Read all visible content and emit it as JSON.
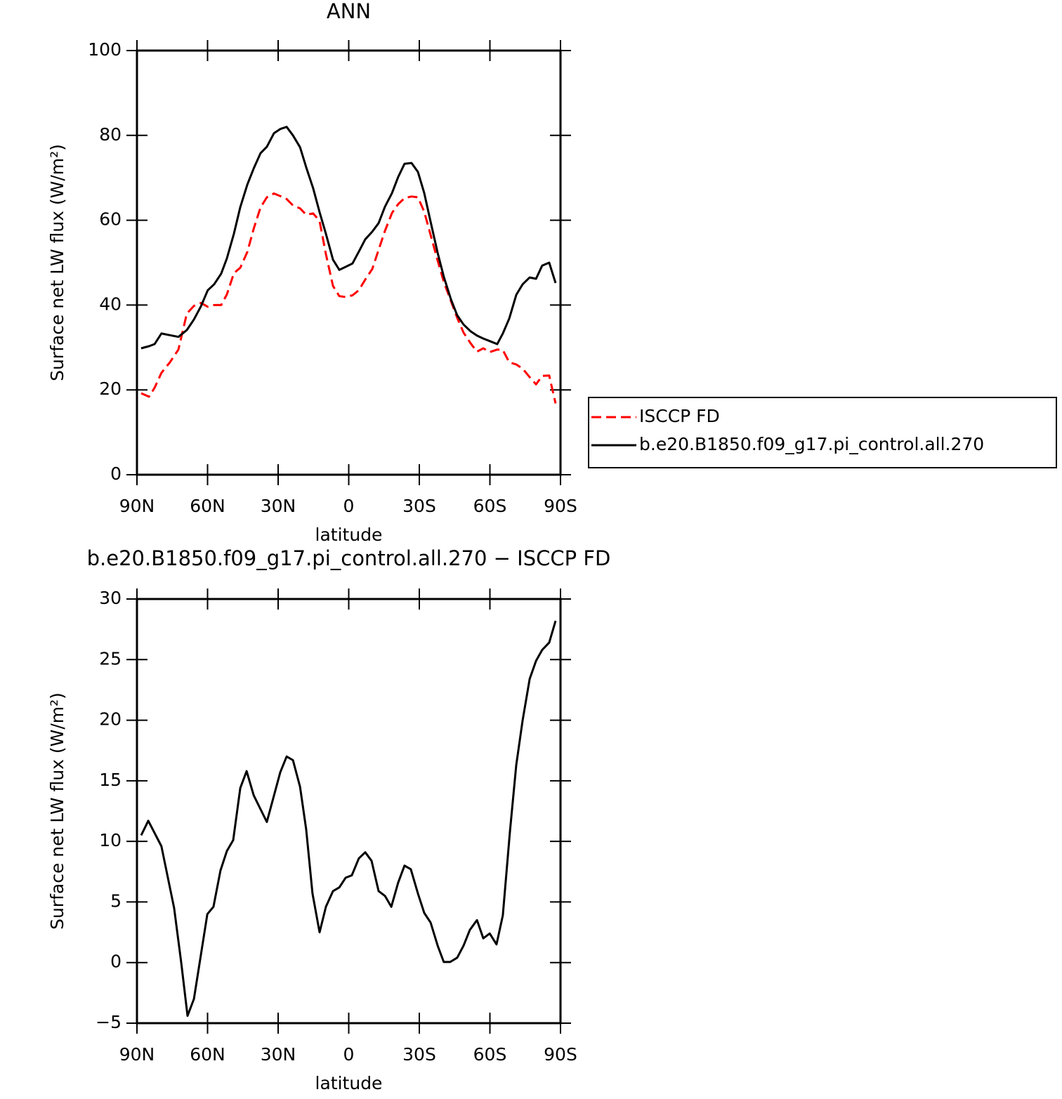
{
  "chart_data": [
    {
      "type": "line",
      "title": "ANN",
      "x_label": "latitude",
      "y_label": "Surface net LW flux (W/m²)",
      "x": [
        88.2,
        84.9,
        82.5,
        79.6,
        76,
        72.4,
        68.8,
        65.8,
        62.8,
        59.9,
        57.2,
        54.2,
        51.8,
        48.8,
        46.1,
        43.1,
        40.4,
        37.5,
        34.8,
        31.8,
        29.1,
        26.4,
        23.7,
        20.7,
        18.1,
        15.1,
        12.4,
        9.7,
        6.7,
        4,
        1.3,
        -1.6,
        -4.3,
        -7,
        -10,
        -12.7,
        -15.4,
        -18.4,
        -21,
        -23.7,
        -26.7,
        -29.4,
        -32.1,
        -34.8,
        -37.8,
        -40.4,
        -43.4,
        -46.1,
        -48.8,
        -51.8,
        -54.5,
        -57.2,
        -59.9,
        -63.1,
        -65.5,
        -68.2,
        -71.2,
        -73.9,
        -76.9,
        -79.6,
        -82.2,
        -85.2,
        -87.9
      ],
      "series": [
        {
          "name": "ISCCP FD",
          "color": "#ff0000",
          "dash": true,
          "values": [
            19.2,
            18.4,
            20.5,
            24,
            26.5,
            29.5,
            38,
            39.8,
            40.5,
            39.6,
            40,
            40,
            42.5,
            47.5,
            48.8,
            52.5,
            58,
            63,
            65.4,
            66.3,
            65.7,
            65,
            63.5,
            62.8,
            61.3,
            61.6,
            59.8,
            52,
            44.5,
            42.1,
            41.9,
            42.3,
            43.5,
            46,
            48.5,
            53,
            57.5,
            61.7,
            63.8,
            65.2,
            65.6,
            65.4,
            62,
            56.5,
            50.5,
            45.5,
            41,
            37,
            33.5,
            31,
            29,
            29.8,
            28.9,
            29.5,
            29.4,
            26.5,
            26,
            25,
            23,
            21.3,
            23.3,
            23.4,
            16.8
          ]
        },
        {
          "name": "b.e20.B1850.f09_g17.pi_control.all.270",
          "color": "#000000",
          "dash": false,
          "values": [
            29.8,
            30.3,
            30.8,
            33.3,
            32.9,
            32.5,
            34.1,
            36.6,
            39.7,
            43.5,
            44.9,
            47.4,
            51,
            56.8,
            63.1,
            68.4,
            72.2,
            75.8,
            77.3,
            80.5,
            81.5,
            82,
            80,
            77.2,
            72.5,
            67.5,
            61.9,
            56.8,
            50.7,
            48.3,
            49,
            49.8,
            52.6,
            55.5,
            57.3,
            59.3,
            63.2,
            66.4,
            70.2,
            73.3,
            73.5,
            71.4,
            66.4,
            59.6,
            52.3,
            46.7,
            41.4,
            37.6,
            35.4,
            33.8,
            32.8,
            32.1,
            31.5,
            30.8,
            33.3,
            36.8,
            42.4,
            44.9,
            46.5,
            46.2,
            49.3,
            50,
            45.2
          ]
        }
      ],
      "xlim": [
        90,
        -90
      ],
      "xticks": [
        {
          "value": 90,
          "label": "90N"
        },
        {
          "value": 60,
          "label": "60N"
        },
        {
          "value": 30,
          "label": "30N"
        },
        0,
        {
          "value": -30,
          "label": "30S"
        },
        {
          "value": -60,
          "label": "60S"
        },
        {
          "value": -90,
          "label": "90S"
        }
      ],
      "ylim": [
        0,
        100
      ],
      "yticks": [
        0,
        20,
        40,
        60,
        80,
        100
      ],
      "legend": "right"
    },
    {
      "type": "line",
      "title": "b.e20.B1850.f09_g17.pi_control.all.270 − ISCCP FD",
      "x_label": "latitude",
      "y_label": "Surface net LW flux (W/m²)",
      "x": [
        88.2,
        85.2,
        79.6,
        74.2,
        71.2,
        68.5,
        65.8,
        60.1,
        57.5,
        54.5,
        51.8,
        49.1,
        46.1,
        43.4,
        40.4,
        34.8,
        29.1,
        26.4,
        23.7,
        20.7,
        18.1,
        15.4,
        12.4,
        9.7,
        6.7,
        4,
        1.3,
        -1.3,
        -4.3,
        -7,
        -9.7,
        -12.7,
        -15.4,
        -18.1,
        -21,
        -23.7,
        -26.4,
        -29.4,
        -32.1,
        -34.8,
        -37.8,
        -40.4,
        -43.1,
        -46.1,
        -48.8,
        -51.5,
        -54.5,
        -57.2,
        -59.9,
        -62.8,
        -65.5,
        -68.5,
        -71.2,
        -73.9,
        -76.9,
        -79.6,
        -82.2,
        -85.2,
        -87.9
      ],
      "series": [
        {
          "color": "#000000",
          "dash": false,
          "values": [
            10.5,
            11.7,
            9.6,
            4.5,
            0,
            -4.4,
            -3,
            4,
            4.6,
            7.6,
            9.2,
            10.1,
            14.4,
            15.8,
            13.8,
            11.6,
            15.7,
            17,
            16.7,
            14.5,
            11,
            5.7,
            2.5,
            4.6,
            5.9,
            6.2,
            7,
            7.2,
            8.6,
            9.1,
            8.4,
            5.9,
            5.5,
            4.6,
            6.6,
            8,
            7.7,
            5.7,
            4.1,
            3.3,
            1.4,
            0.05,
            0.05,
            0.4,
            1.4,
            2.7,
            3.5,
            2,
            2.4,
            1.5,
            3.9,
            10.8,
            16.3,
            20,
            23.4,
            24.9,
            25.8,
            26.4,
            28.2
          ]
        }
      ],
      "xlim": [
        90,
        -90
      ],
      "xticks": [
        {
          "value": 90,
          "label": "90N"
        },
        {
          "value": 60,
          "label": "60N"
        },
        {
          "value": 30,
          "label": "30N"
        },
        0,
        {
          "value": -30,
          "label": "30S"
        },
        {
          "value": -60,
          "label": "60S"
        },
        {
          "value": -90,
          "label": "90S"
        }
      ],
      "ylim": [
        -5,
        30
      ],
      "yticks": [
        {
          "value": -5,
          "label": "−5"
        },
        0,
        5,
        10,
        15,
        20,
        25,
        30
      ]
    }
  ]
}
